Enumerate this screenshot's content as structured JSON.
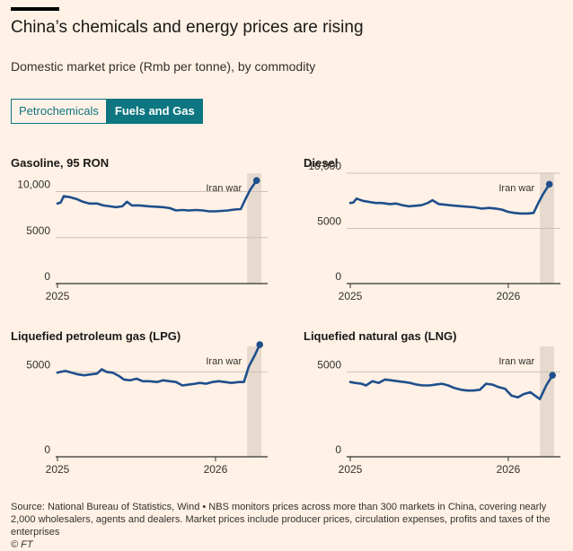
{
  "header": {
    "title": "China’s chemicals and energy prices are rising",
    "subtitle": "Domestic market price (Rmb per tonne), by commodity"
  },
  "tabs": [
    {
      "label": "Petrochemicals",
      "active": false
    },
    {
      "label": "Fuels and Gas",
      "active": true
    }
  ],
  "colors": {
    "line": "#1f4e8c",
    "shade": "#e6d9ce",
    "grid": "#ccc1b7",
    "accent": "#0d7680"
  },
  "chart_data": [
    {
      "type": "line",
      "title": "Gasoline, 95 RON",
      "xlim": [
        2025.0,
        2026.33
      ],
      "ylim": [
        0,
        12000
      ],
      "yticks": [
        0,
        5000,
        10000
      ],
      "ytick_labels": [
        "0",
        "5000",
        "10,000"
      ],
      "xticks": [
        2025
      ],
      "xtick_labels": [
        "2025"
      ],
      "shade": {
        "from": 2026.2,
        "to": 2026.29
      },
      "annotation": "Iran war",
      "x": [
        2025.0,
        2025.02,
        2025.04,
        2025.08,
        2025.12,
        2025.16,
        2025.2,
        2025.25,
        2025.29,
        2025.33,
        2025.37,
        2025.41,
        2025.44,
        2025.47,
        2025.52,
        2025.58,
        2025.63,
        2025.67,
        2025.71,
        2025.75,
        2025.79,
        2025.83,
        2025.88,
        2025.92,
        2025.96,
        2026.0,
        2026.04,
        2026.08,
        2026.12,
        2026.16,
        2026.19,
        2026.22,
        2026.26
      ],
      "values": [
        8700,
        8800,
        9500,
        9400,
        9200,
        8900,
        8700,
        8700,
        8500,
        8400,
        8300,
        8400,
        8900,
        8500,
        8500,
        8400,
        8350,
        8300,
        8200,
        7950,
        8000,
        7950,
        8000,
        7950,
        7850,
        7850,
        7900,
        7950,
        8050,
        8100,
        9200,
        10200,
        11200
      ]
    },
    {
      "type": "line",
      "title": "Diesel",
      "xlim": [
        2025.0,
        2026.33
      ],
      "ylim": [
        0,
        10000
      ],
      "yticks": [
        0,
        5000,
        10000
      ],
      "ytick_labels": [
        "0",
        "5000",
        "10,000"
      ],
      "xticks": [
        2025,
        2026
      ],
      "xtick_labels": [
        "2025",
        "2026"
      ],
      "shade": {
        "from": 2026.2,
        "to": 2026.29
      },
      "annotation": "Iran war",
      "x": [
        2025.0,
        2025.02,
        2025.04,
        2025.08,
        2025.12,
        2025.16,
        2025.2,
        2025.25,
        2025.29,
        2025.33,
        2025.37,
        2025.41,
        2025.45,
        2025.49,
        2025.52,
        2025.56,
        2025.6,
        2025.63,
        2025.67,
        2025.71,
        2025.75,
        2025.79,
        2025.83,
        2025.88,
        2025.92,
        2025.96,
        2026.0,
        2026.04,
        2026.08,
        2026.12,
        2026.16,
        2026.19,
        2026.22,
        2026.26
      ],
      "values": [
        7300,
        7350,
        7700,
        7500,
        7400,
        7300,
        7300,
        7200,
        7250,
        7100,
        7000,
        7050,
        7100,
        7300,
        7550,
        7200,
        7150,
        7100,
        7050,
        7000,
        6950,
        6900,
        6800,
        6850,
        6800,
        6700,
        6500,
        6400,
        6350,
        6350,
        6400,
        7300,
        8100,
        9000
      ]
    },
    {
      "type": "line",
      "title": "Liquefied petroleum gas (LPG)",
      "xlim": [
        2025.0,
        2026.33
      ],
      "ylim": [
        0,
        6500
      ],
      "yticks": [
        0,
        5000
      ],
      "ytick_labels": [
        "0",
        "5000"
      ],
      "xticks": [
        2025,
        2026
      ],
      "xtick_labels": [
        "2025",
        "2026"
      ],
      "shade": {
        "from": 2026.2,
        "to": 2026.29
      },
      "annotation": "Iran war",
      "x": [
        2025.0,
        2025.02,
        2025.05,
        2025.09,
        2025.13,
        2025.17,
        2025.21,
        2025.25,
        2025.28,
        2025.31,
        2025.35,
        2025.39,
        2025.42,
        2025.46,
        2025.5,
        2025.54,
        2025.58,
        2025.63,
        2025.67,
        2025.71,
        2025.75,
        2025.79,
        2025.83,
        2025.87,
        2025.9,
        2025.94,
        2025.98,
        2026.02,
        2026.06,
        2026.1,
        2026.15,
        2026.18,
        2026.21,
        2026.25,
        2026.28
      ],
      "values": [
        4950,
        5000,
        5050,
        4950,
        4850,
        4800,
        4850,
        4900,
        5150,
        5000,
        4950,
        4750,
        4550,
        4500,
        4600,
        4450,
        4450,
        4400,
        4500,
        4450,
        4400,
        4200,
        4250,
        4300,
        4350,
        4300,
        4400,
        4450,
        4400,
        4350,
        4400,
        4400,
        5300,
        6000,
        6600
      ]
    },
    {
      "type": "line",
      "title": "Liquefied natural gas (LNG)",
      "xlim": [
        2025.0,
        2026.33
      ],
      "ylim": [
        0,
        6500
      ],
      "yticks": [
        0,
        5000
      ],
      "ytick_labels": [
        "0",
        "5000"
      ],
      "xticks": [
        2025,
        2026
      ],
      "xtick_labels": [
        "2025",
        "2026"
      ],
      "shade": {
        "from": 2026.2,
        "to": 2026.29
      },
      "annotation": "Iran war",
      "x": [
        2025.0,
        2025.03,
        2025.07,
        2025.1,
        2025.14,
        2025.18,
        2025.22,
        2025.26,
        2025.3,
        2025.34,
        2025.38,
        2025.42,
        2025.46,
        2025.5,
        2025.54,
        2025.58,
        2025.62,
        2025.66,
        2025.7,
        2025.74,
        2025.78,
        2025.82,
        2025.86,
        2025.9,
        2025.94,
        2025.98,
        2026.02,
        2026.06,
        2026.1,
        2026.14,
        2026.17,
        2026.2,
        2026.24,
        2026.28
      ],
      "values": [
        4400,
        4350,
        4300,
        4200,
        4450,
        4350,
        4550,
        4500,
        4450,
        4400,
        4350,
        4250,
        4200,
        4200,
        4250,
        4300,
        4200,
        4050,
        3950,
        3900,
        3900,
        3950,
        4300,
        4250,
        4100,
        4000,
        3600,
        3500,
        3700,
        3800,
        3600,
        3400,
        4200,
        4800
      ]
    }
  ],
  "footer": {
    "source": "Source: National Bureau of Statistics, Wind • NBS monitors prices across more than 300 markets in China, covering nearly 2,000 wholesalers, agents and dealers. Market prices include producer prices, circulation expenses, profits and taxes of the enterprises",
    "credit": "© FT"
  }
}
